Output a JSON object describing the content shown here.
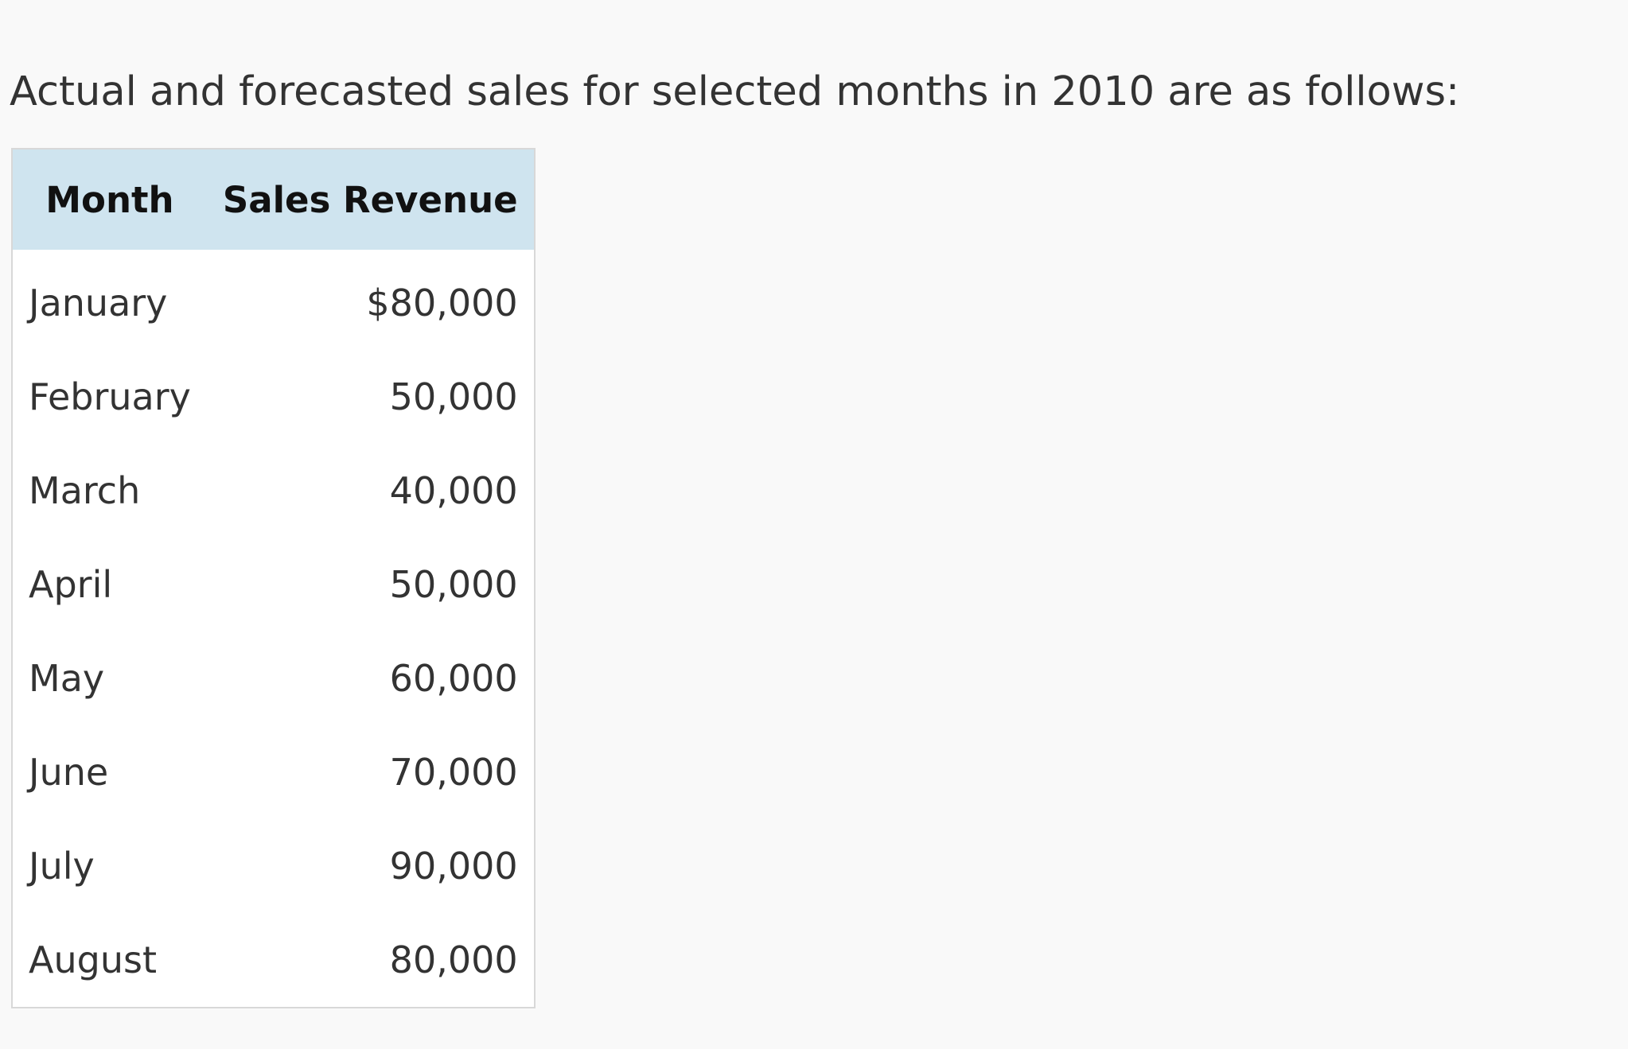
{
  "document": {
    "intro_text": "Actual and forecasted sales for selected months in 2010 are as follows:"
  },
  "table": {
    "headers": {
      "month": "Month",
      "sales_revenue": "Sales Revenue"
    },
    "rows": [
      {
        "month": "January",
        "sales_revenue": "$80,000"
      },
      {
        "month": "February",
        "sales_revenue": "50,000"
      },
      {
        "month": "March",
        "sales_revenue": "40,000"
      },
      {
        "month": "April",
        "sales_revenue": "50,000"
      },
      {
        "month": "May",
        "sales_revenue": "60,000"
      },
      {
        "month": "June",
        "sales_revenue": "70,000"
      },
      {
        "month": "July",
        "sales_revenue": "90,000"
      },
      {
        "month": "August",
        "sales_revenue": "80,000"
      }
    ]
  },
  "colors": {
    "background": "#f9f9f9",
    "header_background": "#cfe4ef",
    "text": "#333333",
    "border": "#d8d8d8"
  }
}
